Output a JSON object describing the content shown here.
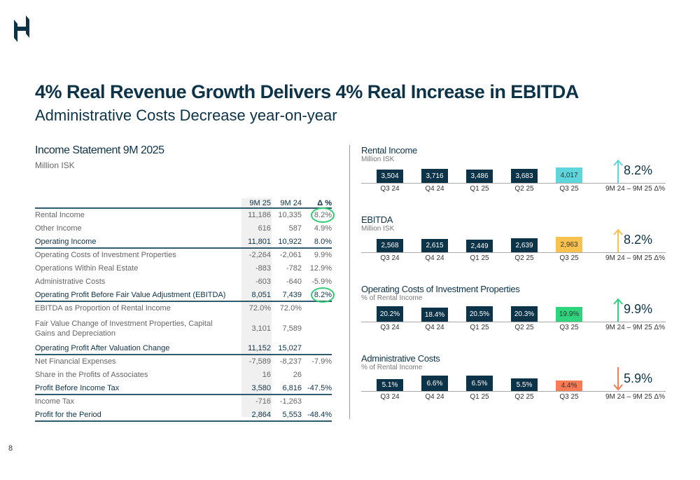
{
  "header": {
    "title": "4% Real Revenue Growth Delivers 4% Real Increase in EBITDA",
    "subtitle": "Administrative Costs Decrease year-on-year"
  },
  "income_statement": {
    "title": "Income Statement 9M 2025",
    "unit": "Million ISK",
    "columns": [
      "9M 25",
      "9M 24",
      "Δ %"
    ],
    "rows": [
      {
        "label": "Rental Income",
        "v25": "11,186",
        "v24": "10,335",
        "delta": "8.2%",
        "highlight": false,
        "circled": true
      },
      {
        "label": "Other Income",
        "v25": "616",
        "v24": "587",
        "delta": "4.9%",
        "highlight": false
      },
      {
        "label": "Operating Income",
        "v25": "11,801",
        "v24": "10,922",
        "delta": "8.0%",
        "highlight": true
      },
      {
        "label": "Operating Costs of Investment Properties",
        "v25": "-2,264",
        "v24": "-2,061",
        "delta": "9.9%",
        "highlight": false
      },
      {
        "label": "Operations Within Real Estate",
        "v25": "-883",
        "v24": "-782",
        "delta": "12.9%",
        "highlight": false
      },
      {
        "label": "Administrative Costs",
        "v25": "-603",
        "v24": "-640",
        "delta": "-5.9%",
        "highlight": false
      },
      {
        "label": "Operating Profit Before Fair Value Adjustment (EBITDA)",
        "v25": "8,051",
        "v24": "7,439",
        "delta": "8.2%",
        "highlight": true,
        "circled": true
      },
      {
        "label": "EBITDA as Proportion of Rental Income",
        "v25": "72.0%",
        "v24": "72.0%",
        "delta": "",
        "highlight": false
      },
      {
        "label": "Fair Value Change of Investment Properties, Capital Gains and Depreciation",
        "v25": "3,101",
        "v24": "7,589",
        "delta": "",
        "highlight": false,
        "tall": true
      },
      {
        "label": "Operating Profit After Valuation Change",
        "v25": "11,152",
        "v24": "15,027",
        "delta": "",
        "highlight": true
      },
      {
        "label": "Net Financial Expenses",
        "v25": "-7,589",
        "v24": "-8,237",
        "delta": "-7.9%",
        "highlight": false
      },
      {
        "label": "Share in the Profits of Associates",
        "v25": "16",
        "v24": "26",
        "delta": "",
        "highlight": false
      },
      {
        "label": "Profit Before Income Tax",
        "v25": "3,580",
        "v24": "6,816",
        "delta": "-47.5%",
        "highlight": true
      },
      {
        "label": "Income Tax",
        "v25": "-716",
        "v24": "-1,263",
        "delta": "",
        "highlight": false
      },
      {
        "label": "Profit for the Period",
        "v25": "2,864",
        "v24": "5,553",
        "delta": "-48.4%",
        "highlight": true
      }
    ]
  },
  "chart_data": [
    {
      "type": "bar",
      "title": "Rental Income",
      "unit": "Million ISK",
      "categories": [
        "Q3 24",
        "Q4 24",
        "Q1 25",
        "Q2 25",
        "Q3 25"
      ],
      "values": [
        3504,
        3716,
        3486,
        3683,
        4017
      ],
      "labels": [
        "3,504",
        "3,716",
        "3,486",
        "3,683",
        "4,017"
      ],
      "highlight_color": "#5dd6dc",
      "delta": "8.2%",
      "delta_direction": "up",
      "delta_color": "#5dd6dc",
      "delta_label": "9M 24 – 9M 25 Δ%"
    },
    {
      "type": "bar",
      "title": "EBITDA",
      "unit": "Million ISK",
      "categories": [
        "Q3 24",
        "Q4 24",
        "Q1 25",
        "Q2 25",
        "Q3 25"
      ],
      "values": [
        2568,
        2615,
        2449,
        2639,
        2963
      ],
      "labels": [
        "2,568",
        "2,615",
        "2,449",
        "2,639",
        "2,963"
      ],
      "highlight_color": "#f9c14d",
      "delta": "8.2%",
      "delta_direction": "up",
      "delta_color": "#f9c14d",
      "delta_label": "9M 24 – 9M 25 Δ%"
    },
    {
      "type": "bar",
      "title": "Operating Costs of Investment Properties",
      "unit": "% of Rental Income",
      "categories": [
        "Q3 24",
        "Q4 24",
        "Q1 25",
        "Q2 25",
        "Q3 25"
      ],
      "values": [
        20.2,
        18.4,
        20.5,
        20.3,
        19.9
      ],
      "labels": [
        "20.2%",
        "18.4%",
        "20.5%",
        "20.3%",
        "19.9%"
      ],
      "highlight_color": "#2ed47e",
      "delta": "9.9%",
      "delta_direction": "up",
      "delta_color": "#2ed47e",
      "delta_label": "9M 24 – 9M 25 Δ%"
    },
    {
      "type": "bar",
      "title": "Administrative Costs",
      "unit": "% of Rental Income",
      "categories": [
        "Q3 24",
        "Q4 24",
        "Q1 25",
        "Q2 25",
        "Q3 25"
      ],
      "values": [
        5.1,
        6.6,
        6.5,
        5.5,
        4.4
      ],
      "labels": [
        "5.1%",
        "6.6%",
        "6.5%",
        "5.5%",
        "4.4%"
      ],
      "highlight_color": "#f77b55",
      "delta": "5.9%",
      "delta_direction": "down",
      "delta_color": "#f77b55",
      "delta_label": "9M 24 – 9M 25 Δ%"
    }
  ],
  "colors": {
    "bar": "#0d3349",
    "accent_circle": "#2ecc71"
  },
  "page_number": "8"
}
